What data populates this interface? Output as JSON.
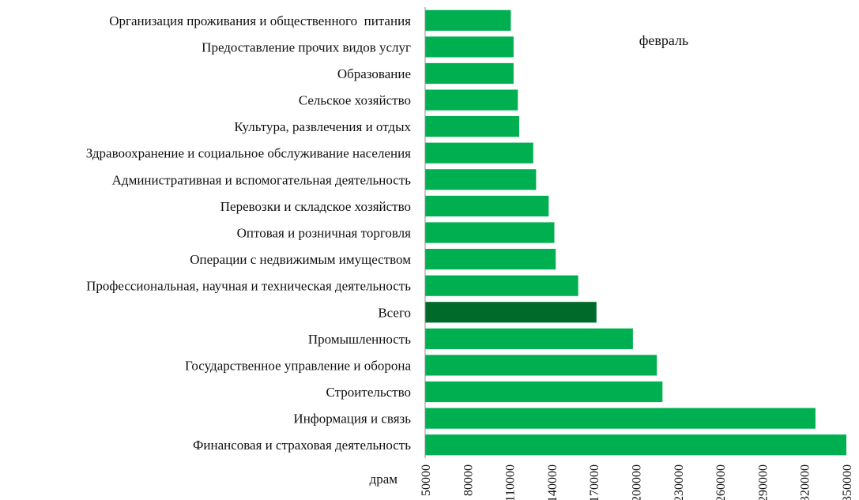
{
  "chart_data": {
    "type": "bar",
    "orientation": "horizontal",
    "title": "февраль",
    "xlabel": "драм",
    "ylabel": "",
    "xlim": [
      50000,
      350000
    ],
    "xticks": [
      50000,
      80000,
      110000,
      140000,
      170000,
      200000,
      230000,
      260000,
      290000,
      320000,
      350000
    ],
    "grid": false,
    "legend": "none",
    "colors": {
      "bar": "#00b050",
      "highlight": "#006a2a",
      "axis": "#8c8c8c"
    },
    "categories": [
      "Организация проживания и общественного  питания",
      "Предоставление прочих видов услуг",
      "Образование",
      "Сельское хозяйство",
      "Культура, развлечения и отдых",
      "Здравоохранение и социальное обслуживание населения",
      "Административная и вспомогательная деятельность",
      "Перевозки и складское хозяйство",
      "Оптовая и розничная торговля",
      "Операции с недвижимым имуществом",
      "Профессиональная, научная и техническая деятельность",
      "Всего",
      "Промышленность",
      "Государственное управление и оборона",
      "Строительство",
      "Информация и связь",
      "Финансовая и страховая деятельность"
    ],
    "values": [
      111000,
      113000,
      113000,
      116000,
      117000,
      127000,
      129000,
      138000,
      142000,
      143000,
      159000,
      172000,
      198000,
      215000,
      219000,
      328000,
      350000
    ],
    "highlight": "Всего"
  }
}
